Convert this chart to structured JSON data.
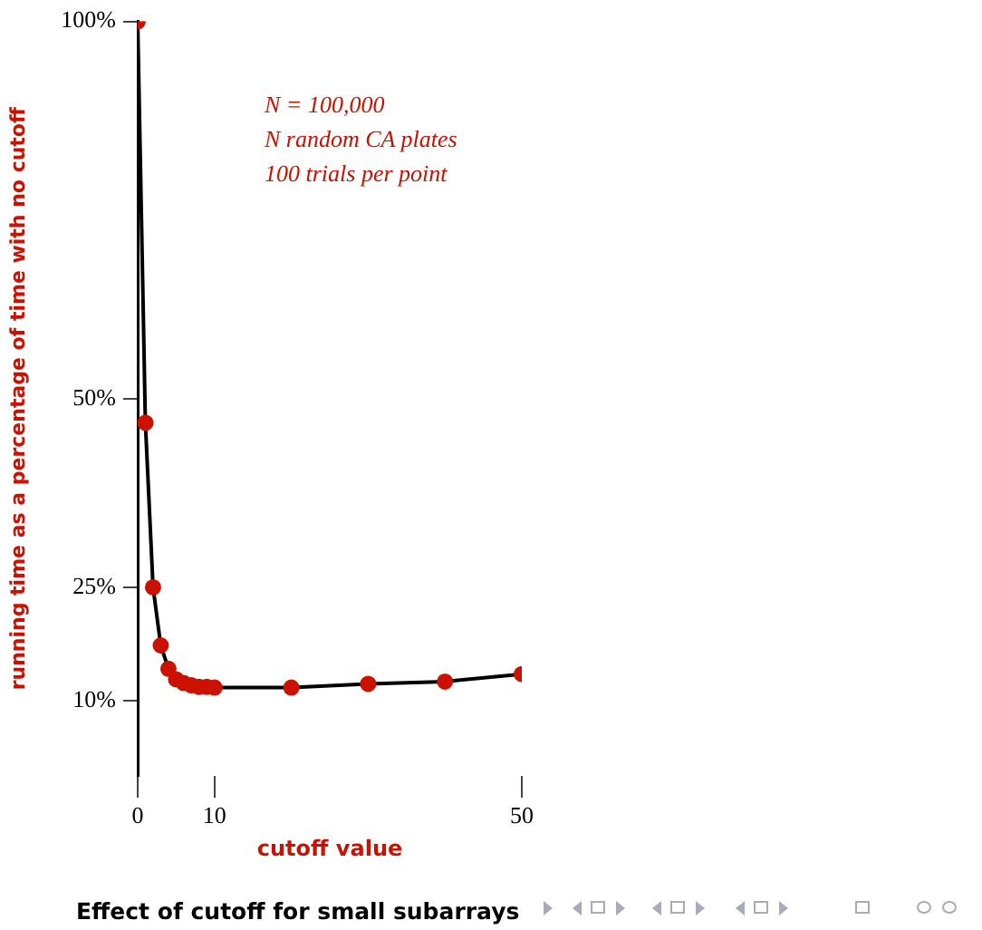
{
  "chart_data": {
    "type": "line",
    "title": "Effect of cutoff  for small subarrays",
    "xlabel": "cutoff value",
    "ylabel": "running time as a percentage of time with no cutoff",
    "annotations": [
      "N = 100,000",
      "N random CA plates",
      "100 trials per point"
    ],
    "x": [
      0,
      1,
      2,
      3,
      4,
      5,
      6,
      7,
      8,
      9,
      10,
      20,
      30,
      40,
      50
    ],
    "series": [
      {
        "color": "#cc1100",
        "values": [
          100,
          46.8,
          25,
          17.3,
          14.2,
          12.8,
          12.3,
          12,
          11.8,
          11.8,
          11.7,
          11.7,
          12.2,
          12.5,
          13.5
        ]
      }
    ],
    "xlim": [
      0,
      50
    ],
    "xticks": [
      0,
      10,
      50
    ],
    "ylim": [
      0,
      100
    ],
    "yticks": [
      {
        "value": 10,
        "label": "10%"
      },
      {
        "value": 25,
        "label": "25%"
      },
      {
        "value": 50,
        "label": "50%"
      },
      {
        "value": 100,
        "label": "100%"
      }
    ],
    "grid": false,
    "legend": false,
    "marker": "circle",
    "line_style": "solid"
  }
}
